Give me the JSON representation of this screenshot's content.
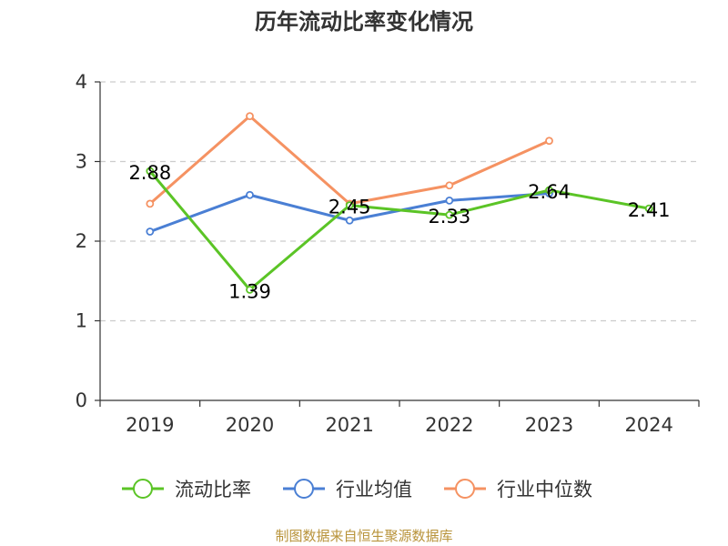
{
  "chart_data": {
    "type": "line",
    "title": "历年流动比率变化情况",
    "categories": [
      "2019",
      "2020",
      "2021",
      "2022",
      "2023",
      "2024"
    ],
    "ylim": [
      0,
      4
    ],
    "yticks": [
      "0",
      "1",
      "2",
      "3",
      "4"
    ],
    "grid": true,
    "legend_position": "bottom",
    "series": [
      {
        "name": "流动比率",
        "color": "#5bc426",
        "values": [
          2.88,
          1.39,
          2.45,
          2.33,
          2.64,
          2.41
        ],
        "labels": [
          "2.88",
          "1.39",
          "2.45",
          "2.33",
          "2.64",
          "2.41"
        ]
      },
      {
        "name": "行业均值",
        "color": "#4a7fd4",
        "values": [
          2.12,
          2.58,
          2.26,
          2.51,
          2.6,
          null
        ]
      },
      {
        "name": "行业中位数",
        "color": "#f59262",
        "values": [
          2.47,
          3.57,
          2.47,
          2.7,
          3.26,
          null
        ]
      }
    ]
  },
  "source": "制图数据来自恒生聚源数据库"
}
